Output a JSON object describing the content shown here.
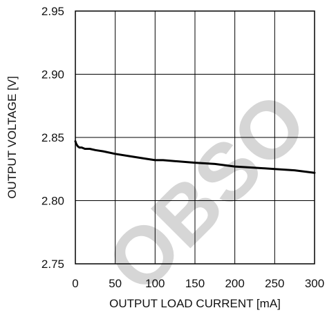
{
  "chart_data": {
    "type": "line",
    "title": "",
    "xlabel": "OUTPUT LOAD CURRENT [mA]",
    "ylabel": "OUTPUT VOLTAGE [V]",
    "xlim": [
      0,
      300
    ],
    "ylim": [
      2.75,
      2.95
    ],
    "x_ticks": [
      "0",
      "50",
      "100",
      "150",
      "200",
      "250",
      "300"
    ],
    "y_ticks": [
      "2.95",
      "2.90",
      "2.85",
      "2.80",
      "2.75"
    ],
    "grid": true,
    "legend": "none",
    "line_color": "#000000",
    "series": [
      {
        "x": [
          0,
          1,
          2,
          3,
          5,
          8,
          12,
          18,
          25,
          35,
          50,
          70,
          90,
          100,
          110,
          130,
          150,
          175,
          200,
          225,
          250,
          275,
          300
        ],
        "values": [
          2.847,
          2.845,
          2.844,
          2.843,
          2.842,
          2.842,
          2.841,
          2.841,
          2.84,
          2.839,
          2.837,
          2.835,
          2.833,
          2.832,
          2.832,
          2.831,
          2.83,
          2.829,
          2.827,
          2.826,
          2.825,
          2.824,
          2.822
        ]
      }
    ]
  },
  "watermark": {
    "text": "OBSO",
    "color": "#d6d6d6"
  }
}
